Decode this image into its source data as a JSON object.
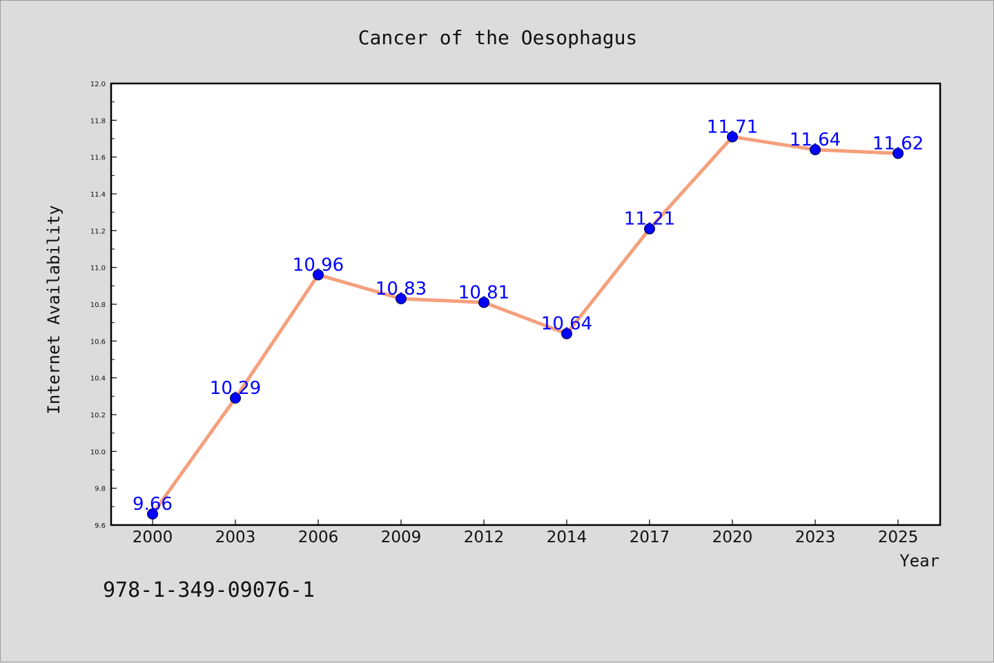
{
  "chart_data": {
    "type": "line",
    "title": "Cancer of the Oesophagus",
    "xlabel": "Year",
    "ylabel": "Internet Availability",
    "categories": [
      "2000",
      "2003",
      "2006",
      "2009",
      "2012",
      "2014",
      "2017",
      "2020",
      "2023",
      "2025"
    ],
    "series": [
      {
        "values": [
          9.66,
          10.29,
          10.96,
          10.83,
          10.81,
          10.64,
          11.21,
          11.71,
          11.64,
          11.62
        ],
        "labels": [
          "9.66",
          "10.29",
          "10.96",
          "10.83",
          "10.81",
          "10.64",
          "11.21",
          "11.71",
          "11.64",
          "11.62"
        ],
        "line_color": "#f4a07c",
        "marker_color": "#0000ff"
      }
    ],
    "ylim": [
      9.6,
      12.0
    ],
    "yticks": [
      "9.6",
      "9.8",
      "10.0",
      "10.2",
      "10.4",
      "10.6",
      "10.8",
      "11.0",
      "11.2",
      "11.4",
      "11.6",
      "11.8",
      "12.0"
    ],
    "grid": false,
    "legend": "none"
  },
  "footnote": "978-1-349-09076-1"
}
